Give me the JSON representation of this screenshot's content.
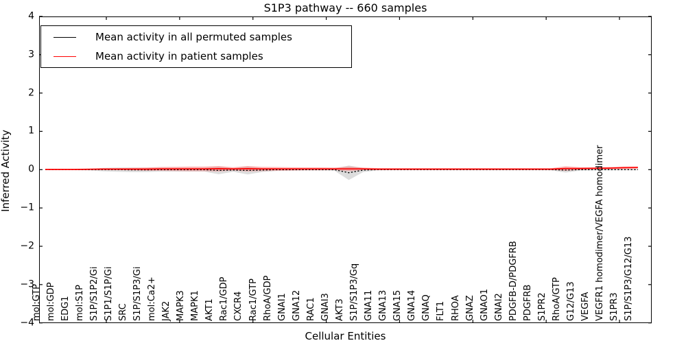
{
  "title": "S1P3 pathway -- 660 samples",
  "axes": {
    "ylabel": "Inferred Activity",
    "xlabel": "Cellular Entities",
    "yticks": [
      "4",
      "3",
      "2",
      "1",
      "0",
      "−1",
      "−2",
      "−3",
      "−4"
    ]
  },
  "legend": {
    "items": [
      {
        "label": "Mean activity in all permuted samples",
        "color": "#000000"
      },
      {
        "label": "Mean activity in patient samples",
        "color": "#ff0000"
      }
    ]
  },
  "colors": {
    "permuted_line": "#000000",
    "patient_line": "#ff0000",
    "permuted_band": "#bbbbbb",
    "patient_band": "#ff4444"
  },
  "chart_data": {
    "type": "line",
    "title": "S1P3 pathway -- 660 samples",
    "xlabel": "Cellular Entities",
    "ylabel": "Inferred Activity",
    "ylim": [
      -4,
      4
    ],
    "grid": false,
    "legend_position": "upper left",
    "categories": [
      "mol:GTP",
      "mol:GDP",
      "EDG1",
      "mol:S1P",
      "S1P/S1P2/Gi",
      "S1P1/S1P/Gi",
      "SRC",
      "S1P/S1P3/Gi",
      "mol:Ca2+",
      "JAK2",
      "MAPK3",
      "MAPK1",
      "AKT1",
      "Rac1/GDP",
      "CXCR4",
      "Rac1/GTP",
      "RhoA/GDP",
      "GNAI1",
      "GNA12",
      "RAC1",
      "GNAI3",
      "AKT3",
      "S1P/S1P3/Gq",
      "GNA11",
      "GNA13",
      "GNA15",
      "GNA14",
      "GNAQ",
      "FLT1",
      "RHOA",
      "GNAZ",
      "GNAO1",
      "GNAI2",
      "PDGFB-D/PDGFRB",
      "PDGFRB",
      "S1PR2",
      "RhoA/GTP",
      "G12/G13",
      "VEGFA",
      "VEGFR1 homodimer/VEGFA homodimer",
      "S1PR3",
      "S1P/S1P3/G12/G13"
    ],
    "series": [
      {
        "name": "Mean activity in all permuted samples",
        "color": "#000000",
        "style": "dashed",
        "values": [
          0,
          0,
          0,
          0,
          0,
          0,
          -0.005,
          -0.005,
          0,
          0,
          0,
          0,
          -0.02,
          -0.01,
          -0.02,
          -0.01,
          0,
          0,
          0,
          0,
          0,
          -0.08,
          -0.01,
          0,
          0,
          0,
          0,
          0,
          0,
          0,
          0,
          0,
          0,
          0,
          0,
          0,
          -0.01,
          0,
          0,
          0,
          0,
          0
        ],
        "band_halfwidth": [
          0.01,
          0.01,
          0.012,
          0.02,
          0.045,
          0.055,
          0.06,
          0.055,
          0.05,
          0.05,
          0.05,
          0.05,
          0.1,
          0.045,
          0.105,
          0.05,
          0.035,
          0.025,
          0.022,
          0.022,
          0.025,
          0.19,
          0.05,
          0.02,
          0.015,
          0.015,
          0.015,
          0.015,
          0.015,
          0.015,
          0.015,
          0.015,
          0.015,
          0.015,
          0.015,
          0.02,
          0.065,
          0.025,
          0.02,
          0.018,
          0.015,
          0.015
        ]
      },
      {
        "name": "Mean activity in patient samples",
        "color": "#ff0000",
        "style": "solid",
        "values": [
          0.005,
          0.005,
          0.005,
          0.01,
          0.015,
          0.015,
          0.015,
          0.015,
          0.02,
          0.02,
          0.02,
          0.02,
          0.025,
          0.02,
          0.025,
          0.02,
          0.02,
          0.02,
          0.02,
          0.02,
          0.02,
          0.02,
          0.02,
          0.015,
          0.015,
          0.015,
          0.015,
          0.015,
          0.015,
          0.015,
          0.015,
          0.015,
          0.015,
          0.015,
          0.015,
          0.015,
          0.03,
          0.03,
          0.035,
          0.04,
          0.05,
          0.055
        ],
        "band_halfwidth": [
          0.008,
          0.008,
          0.01,
          0.015,
          0.02,
          0.025,
          0.03,
          0.04,
          0.05,
          0.055,
          0.06,
          0.06,
          0.07,
          0.045,
          0.07,
          0.055,
          0.05,
          0.045,
          0.04,
          0.04,
          0.035,
          0.06,
          0.035,
          0.025,
          0.02,
          0.02,
          0.02,
          0.02,
          0.02,
          0.02,
          0.02,
          0.02,
          0.02,
          0.02,
          0.02,
          0.022,
          0.06,
          0.035,
          0.03,
          0.03,
          0.03,
          0.03
        ]
      }
    ]
  }
}
